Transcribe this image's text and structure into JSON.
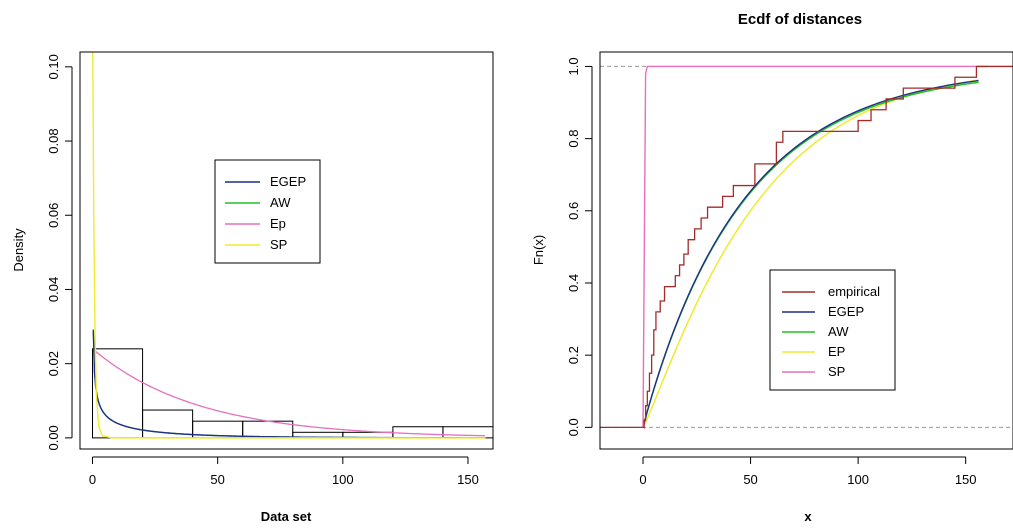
{
  "chart_data": [
    {
      "type": "histogram",
      "title": "",
      "xlabel": "Data set",
      "ylabel": "Density",
      "xlim": [
        -5,
        160
      ],
      "ylim": [
        -0.003,
        0.104
      ],
      "xticks": [
        0,
        50,
        100,
        150
      ],
      "yticks": [
        0.0,
        0.02,
        0.04,
        0.06,
        0.08,
        0.1
      ],
      "xtick_labels": [
        "0",
        "50",
        "100",
        "150"
      ],
      "ytick_labels": [
        "0.00",
        "0.02",
        "0.04",
        "0.06",
        "0.08",
        "0.10"
      ],
      "bins": [
        {
          "x0": 0,
          "x1": 20,
          "density": 0.024
        },
        {
          "x0": 20,
          "x1": 40,
          "density": 0.0075
        },
        {
          "x0": 40,
          "x1": 60,
          "density": 0.0045
        },
        {
          "x0": 60,
          "x1": 80,
          "density": 0.0045
        },
        {
          "x0": 80,
          "x1": 100,
          "density": 0.0015
        },
        {
          "x0": 100,
          "x1": 120,
          "density": 0.0015
        },
        {
          "x0": 120,
          "x1": 140,
          "density": 0.003
        },
        {
          "x0": 140,
          "x1": 160,
          "density": 0.003
        }
      ],
      "series": [
        {
          "name": "EGEP",
          "color": "#1f2f8a"
        },
        {
          "name": "AW",
          "color": "#22c022"
        },
        {
          "name": "Ep",
          "color": "#e66fc0"
        },
        {
          "name": "SP",
          "color": "#f0ea30"
        }
      ],
      "legend": {
        "placement": "center",
        "entries": [
          "EGEP",
          "AW",
          "Ep",
          "SP"
        ]
      }
    },
    {
      "type": "line",
      "title": "Ecdf of distances",
      "xlabel": "x",
      "ylabel": "Fn(x)",
      "xlim": [
        -20,
        172
      ],
      "ylim": [
        -0.06,
        1.04
      ],
      "xticks": [
        0,
        50,
        100,
        150
      ],
      "yticks": [
        0.0,
        0.2,
        0.4,
        0.6,
        0.8,
        1.0
      ],
      "xtick_labels": [
        "0",
        "50",
        "100",
        "150"
      ],
      "ytick_labels": [
        "0.0",
        "0.2",
        "0.4",
        "0.6",
        "0.8",
        "1.0"
      ],
      "empirical_steps": [
        [
          0.5,
          0.02
        ],
        [
          1.2,
          0.06
        ],
        [
          2,
          0.1
        ],
        [
          3,
          0.15
        ],
        [
          4,
          0.2
        ],
        [
          5,
          0.27
        ],
        [
          6,
          0.32
        ],
        [
          8,
          0.35
        ],
        [
          10,
          0.39
        ],
        [
          15,
          0.42
        ],
        [
          17,
          0.45
        ],
        [
          19,
          0.48
        ],
        [
          21,
          0.52
        ],
        [
          24,
          0.55
        ],
        [
          27,
          0.58
        ],
        [
          30,
          0.61
        ],
        [
          37,
          0.64
        ],
        [
          42,
          0.67
        ],
        [
          52,
          0.73
        ],
        [
          62,
          0.79
        ],
        [
          65,
          0.82
        ],
        [
          100,
          0.85
        ],
        [
          106,
          0.88
        ],
        [
          113,
          0.91
        ],
        [
          121,
          0.94
        ],
        [
          145,
          0.97
        ],
        [
          155,
          1.0
        ]
      ],
      "series": [
        {
          "name": "empirical",
          "color": "#a52a2a"
        },
        {
          "name": "EGEP",
          "color": "#1f2f8a"
        },
        {
          "name": "AW",
          "color": "#22c022"
        },
        {
          "name": "EP",
          "color": "#f0ea30"
        },
        {
          "name": "SP",
          "color": "#e66fc0"
        }
      ],
      "legend": {
        "placement": "lower-center",
        "entries": [
          "empirical",
          "EGEP",
          "AW",
          "EP",
          "SP"
        ]
      }
    }
  ]
}
